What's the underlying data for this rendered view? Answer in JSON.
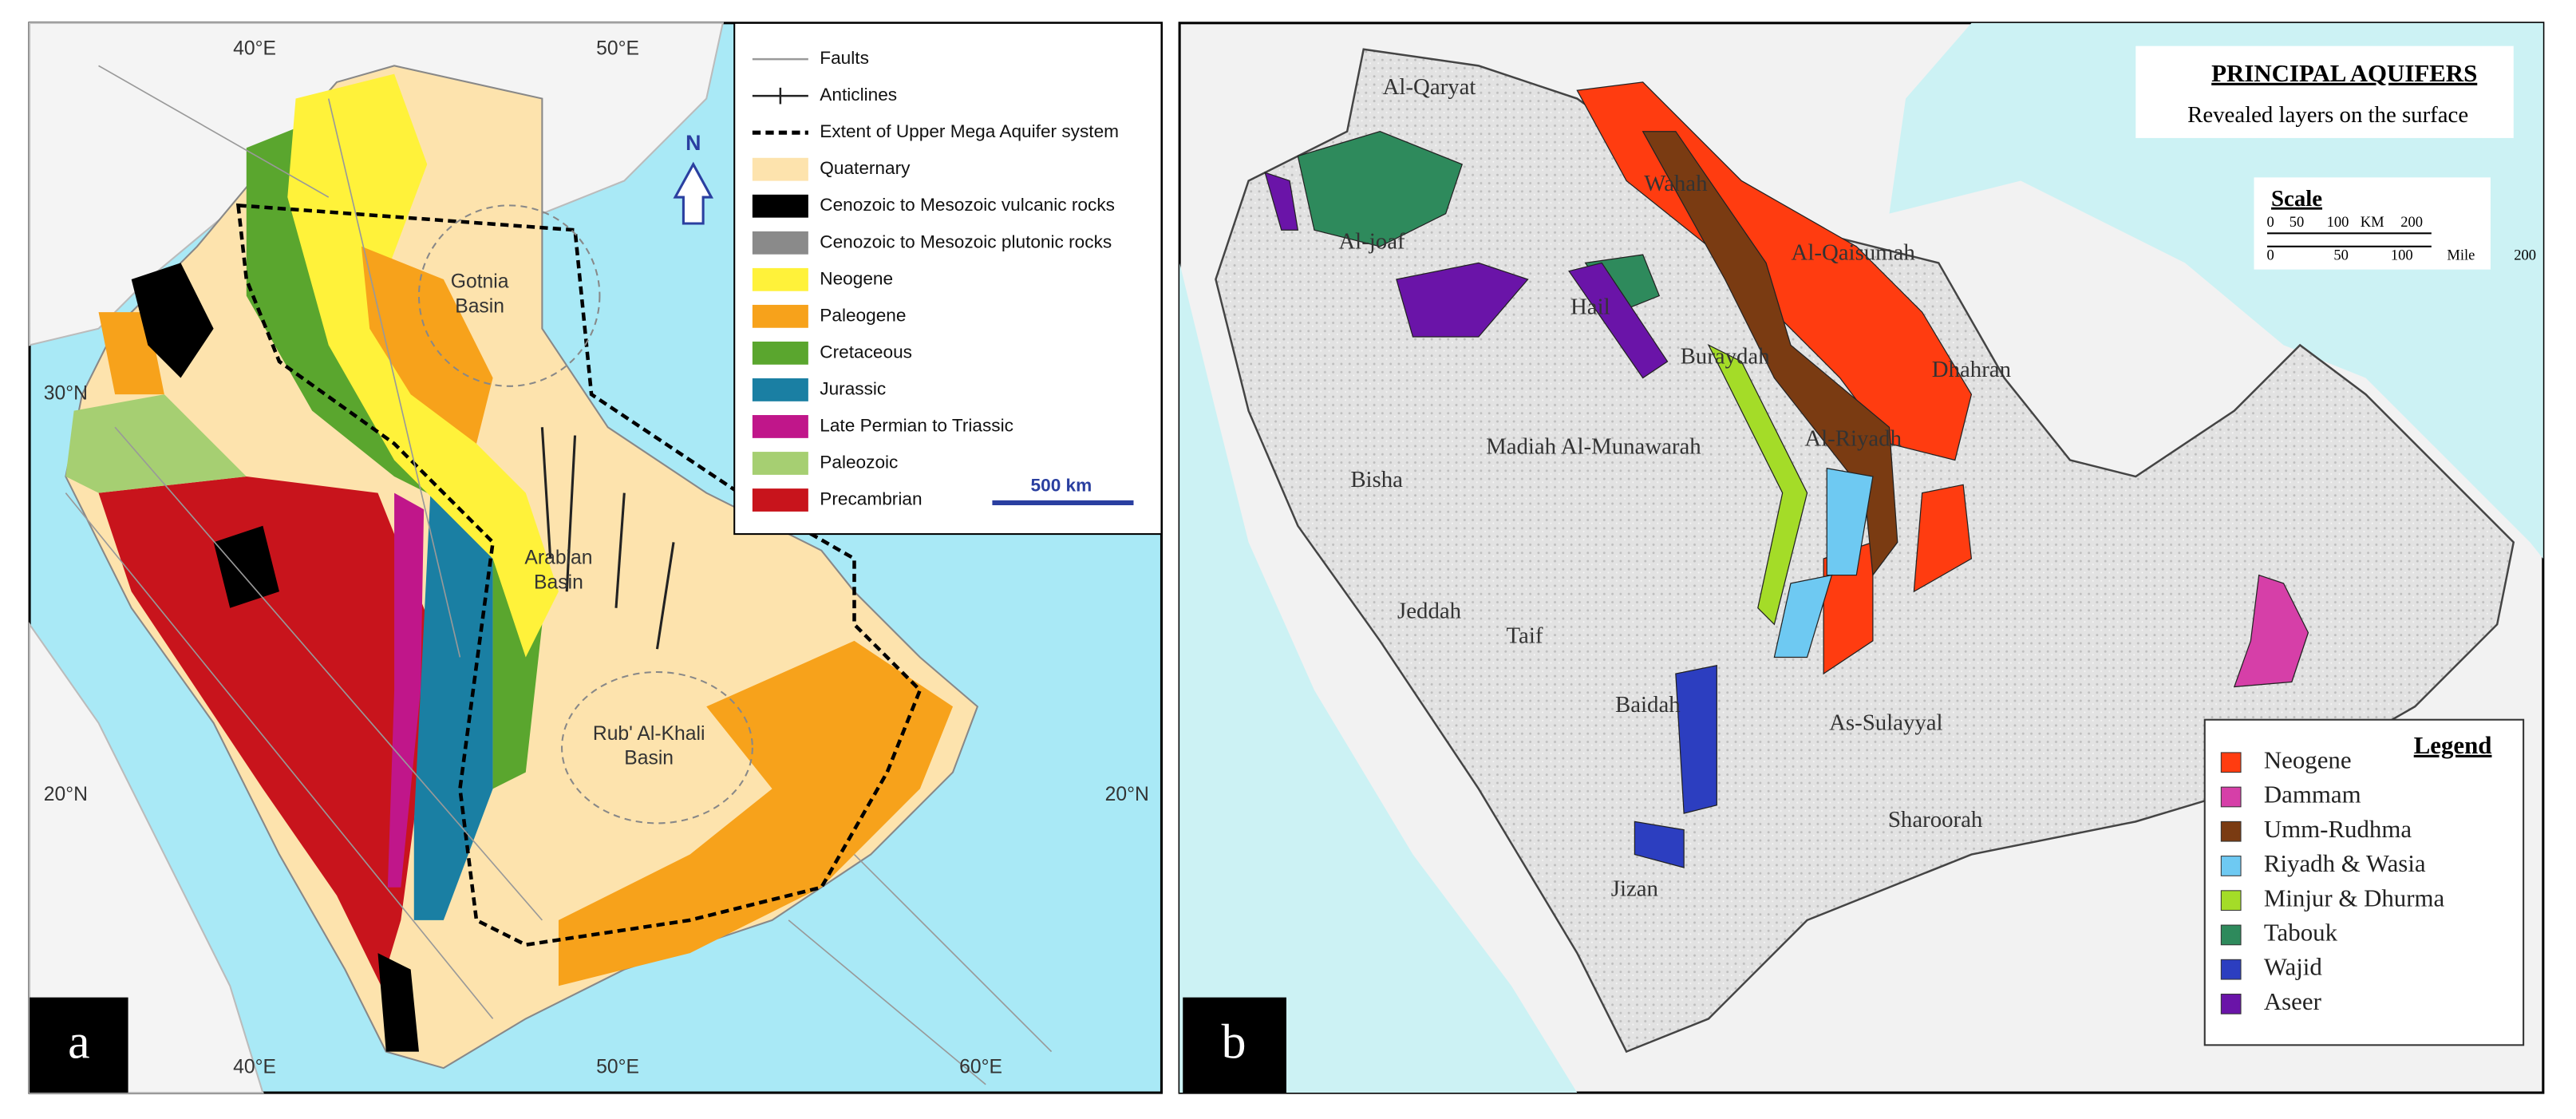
{
  "panel_a": {
    "label": "a",
    "lon_top": [
      "40°E",
      "50°E"
    ],
    "lon_bottom": [
      "40°E",
      "50°E",
      "60°E"
    ],
    "lat_left": [
      "30°N",
      "20°N"
    ],
    "lat_right": [
      "20°N"
    ],
    "basins": [
      [
        "Gotnia",
        "Basin"
      ],
      [
        "Arabian",
        "Basin"
      ],
      [
        "Rub' Al-Khali",
        "Basin"
      ]
    ],
    "north": "N",
    "scale": "500 km",
    "legend": [
      {
        "label": "Faults",
        "symbol": "line",
        "color": "#9a9a9a"
      },
      {
        "label": "Anticlines",
        "symbol": "anticline",
        "color": "#222222"
      },
      {
        "label": "Extent of Upper Mega Aquifer system",
        "symbol": "dashed",
        "color": "#000000"
      },
      {
        "label": "Quaternary",
        "symbol": "box",
        "color": "#fde3ad"
      },
      {
        "label": "Cenozoic to Mesozoic vulcanic rocks",
        "symbol": "box",
        "color": "#000000"
      },
      {
        "label": "Cenozoic to Mesozoic plutonic rocks",
        "symbol": "box",
        "color": "#8a8a8a"
      },
      {
        "label": "Neogene",
        "symbol": "box",
        "color": "#fff23a"
      },
      {
        "label": "Paleogene",
        "symbol": "box",
        "color": "#f7a21b"
      },
      {
        "label": "Cretaceous",
        "symbol": "box",
        "color": "#5aa62e"
      },
      {
        "label": "Jurassic",
        "symbol": "box",
        "color": "#1a7fa3"
      },
      {
        "label": "Late Permian to Triassic",
        "symbol": "box",
        "color": "#c0168a"
      },
      {
        "label": "Paleozoic",
        "symbol": "box",
        "color": "#a6cf72"
      },
      {
        "label": "Precambrian",
        "symbol": "box",
        "color": "#c8141c"
      }
    ]
  },
  "panel_b": {
    "label": "b",
    "title": "PRINCIPAL AQUIFERS",
    "subtitle": "Revealed layers on the surface",
    "scale_title": "Scale",
    "scale_km": [
      "0",
      "50",
      "100",
      "KM",
      "200"
    ],
    "scale_mile": [
      "0",
      "50",
      "100",
      "Mile",
      "200"
    ],
    "places": [
      "Al-Qaryat",
      "Al-joaf",
      "Wahah",
      "Al-Qaisumah",
      "Hail",
      "Buraydah",
      "Dhahran",
      "Madiah Al-Munawarah",
      "Al-Riyadh",
      "Bisha",
      "Jeddah",
      "Taif",
      "Baidah",
      "As-Sulayyal",
      "Sharoorah",
      "Jizan"
    ],
    "legend_title": "Legend",
    "legend": [
      {
        "label": "Neogene",
        "color": "#ff3c10"
      },
      {
        "label": "Dammam",
        "color": "#d63fa8"
      },
      {
        "label": "Umm-Rudhma",
        "color": "#7a3b12"
      },
      {
        "label": "Riyadh & Wasia",
        "color": "#6ec9f2"
      },
      {
        "label": "Minjur & Dhurma",
        "color": "#a4dc28"
      },
      {
        "label": "Tabouk",
        "color": "#2e8a5c"
      },
      {
        "label": "Wajid",
        "color": "#2c3ec0"
      },
      {
        "label": "Aseer",
        "color": "#6a14a8"
      }
    ]
  }
}
